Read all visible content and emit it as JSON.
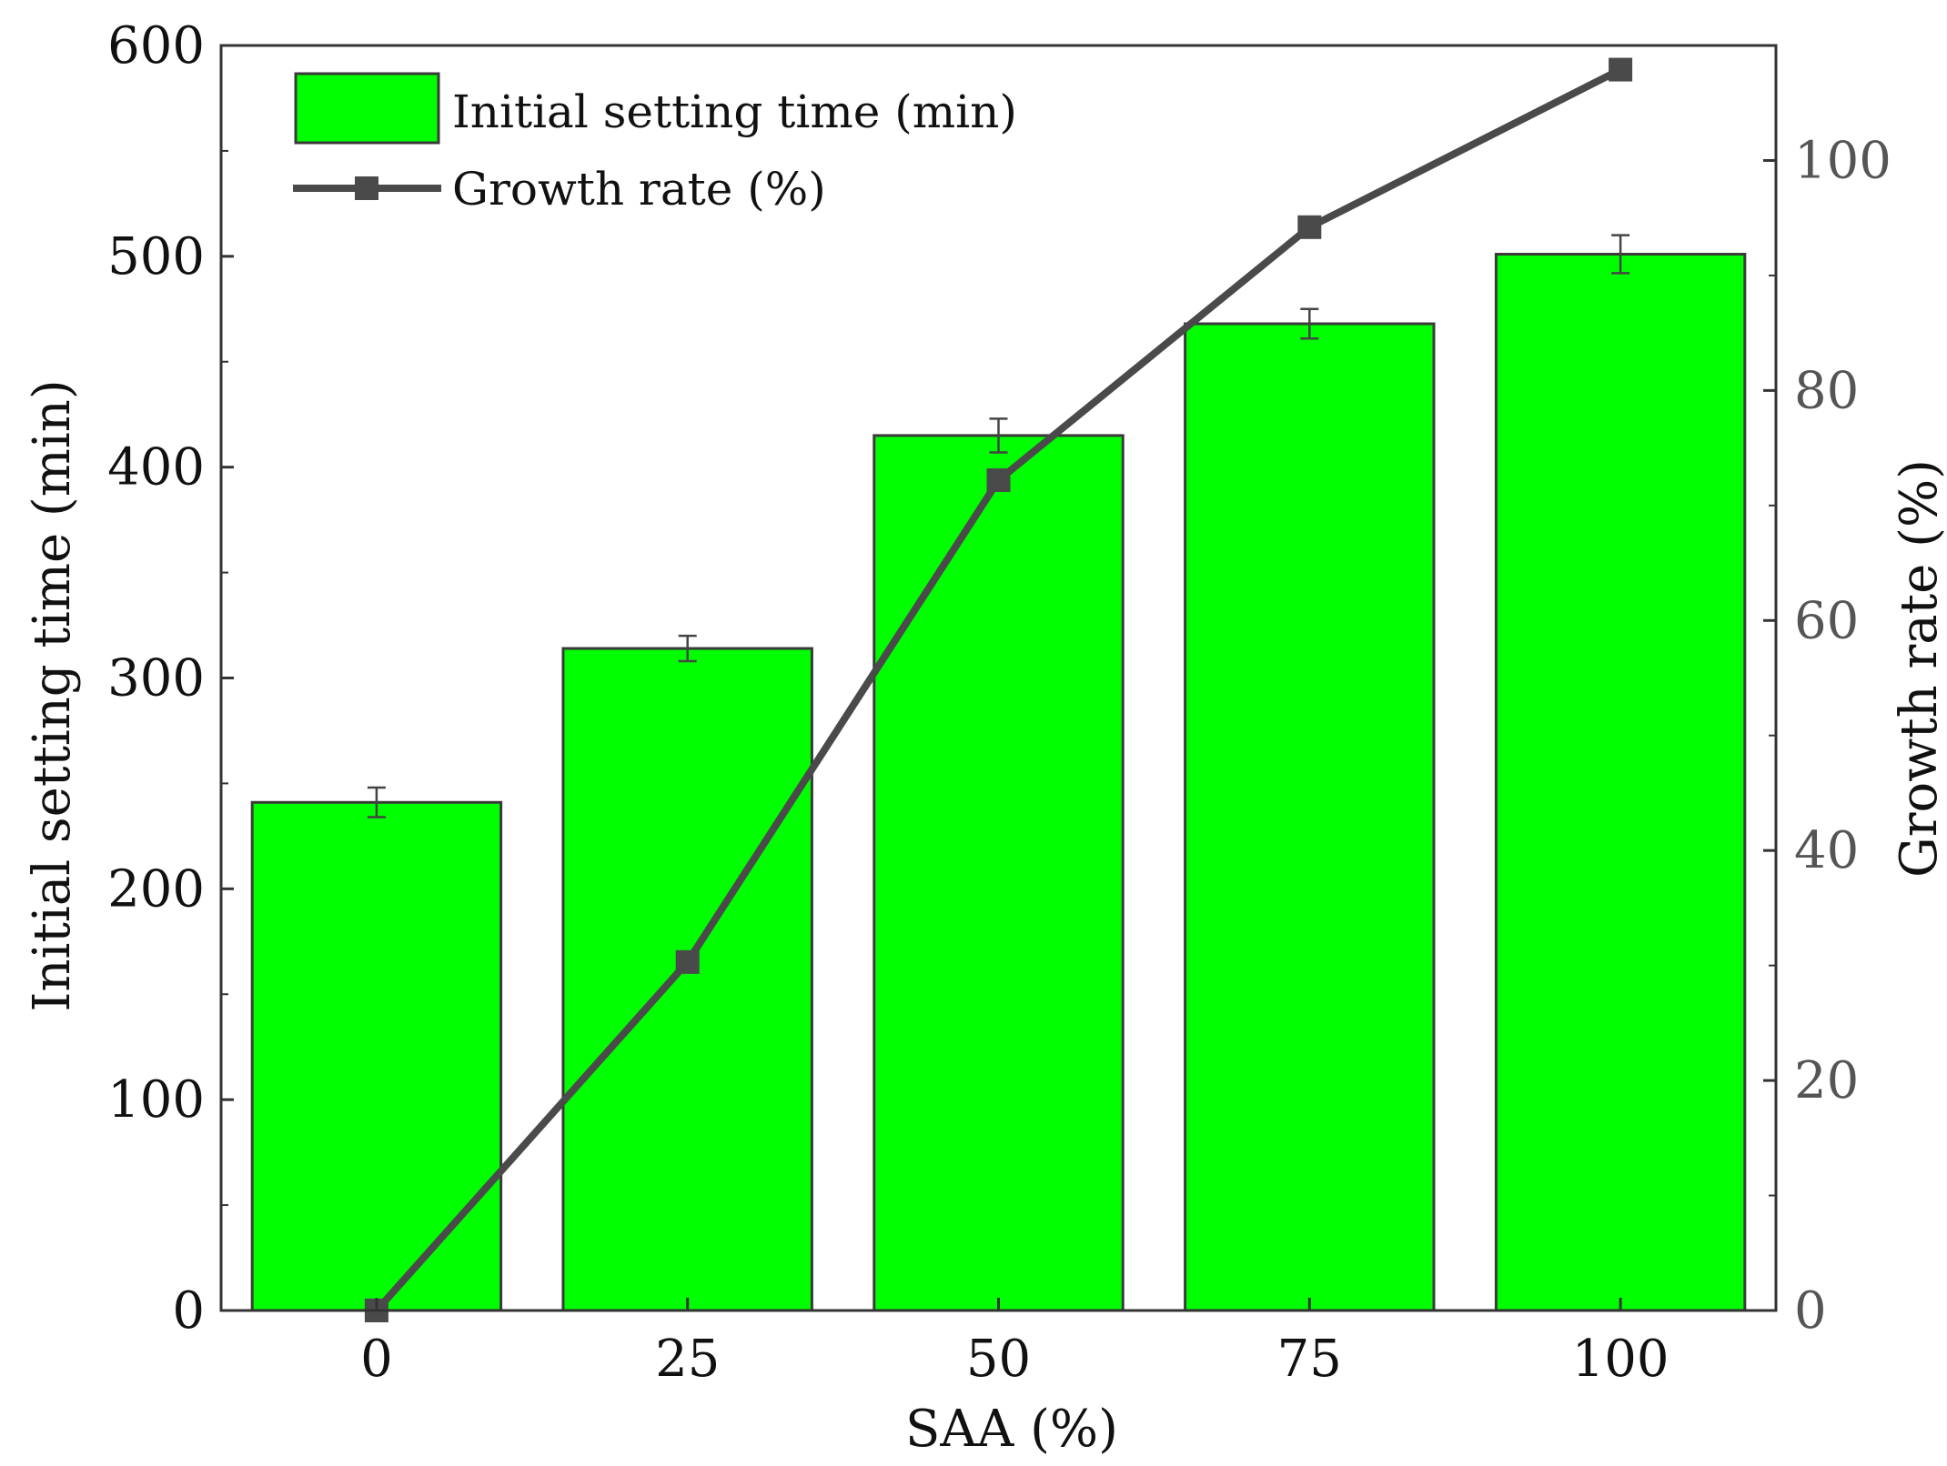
{
  "chart_data": {
    "type": "bar",
    "categories": [
      "0",
      "25",
      "50",
      "75",
      "100"
    ],
    "xlabel": "SAA (%)",
    "ylabel": "Initial setting time (min)",
    "ylabel_right": "Growth rate (%)",
    "ylim": [
      0,
      600
    ],
    "ylim_right": [
      0,
      110
    ],
    "yticks": [
      "0",
      "100",
      "200",
      "300",
      "400",
      "500",
      "600"
    ],
    "yticks_right": [
      "0",
      "20",
      "40",
      "60",
      "80",
      "100"
    ],
    "series": [
      {
        "name": "Initial setting time (min)",
        "kind": "bar",
        "axis": "left",
        "values": [
          241,
          314,
          415,
          468,
          501
        ],
        "errors": [
          7,
          6,
          8,
          7,
          9
        ],
        "color": "#00ff00",
        "edge_color": "#3a3a3a"
      },
      {
        "name": "Growth rate (%)",
        "kind": "line",
        "axis": "right",
        "values": [
          0,
          30.3,
          72.2,
          94.2,
          107.9
        ],
        "color": "#4a4a4a"
      }
    ],
    "legend": "top-left"
  }
}
